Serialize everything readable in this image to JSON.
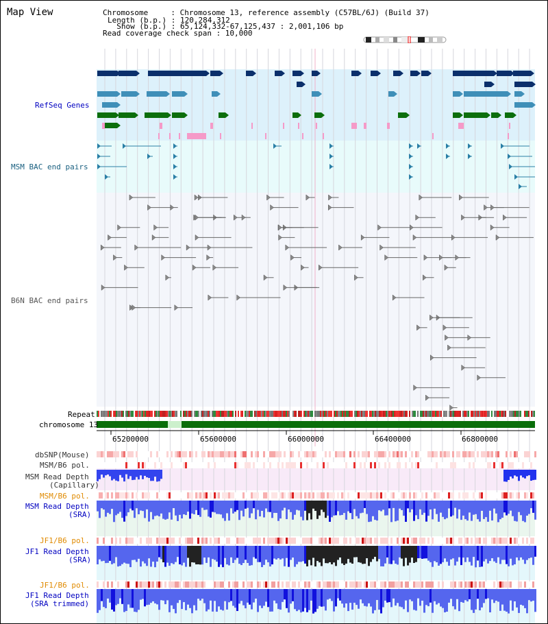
{
  "title": "Map View",
  "info": {
    "chromosome": "Chromosome     : Chromosome 13, reference assembly (C57BL/6J) (Build 37)",
    "length": "Length (b.p.) : 120,284,312",
    "show": "  Show (b.p.) : 65,124,332-67,125,437 : 2,001,106 bp",
    "coverage": "Read coverage check span : 10,000"
  },
  "tracks": {
    "refseq": "RefSeq Genes",
    "msm_bac": "MSM BAC end pairs",
    "b6n_bac": "B6N BAC end pairs",
    "repeat": "Repeat",
    "chromosome": "chromosome 13",
    "dbsnp": "dbSNP(Mouse)",
    "msm_b6_pol": "MSM/B6 pol.",
    "msm_depth_cap_1": "MSM Read Depth",
    "msm_depth_cap_2": "(Capillary)",
    "msm_b6_pol_2": "MSM/B6 pol.",
    "msm_depth_sra_1": "MSM Read Depth",
    "msm_depth_sra_2": "(SRA)",
    "jf1_b6_pol": "JF1/B6 pol.",
    "jf1_depth_sra_1": "JF1 Read Depth",
    "jf1_depth_sra_2": "(SRA)",
    "jf1_b6_pol_2": "JF1/B6 pol.",
    "jf1_depth_trim_1": "JF1 Read Depth",
    "jf1_depth_trim_2": "(SRA trimmed)"
  },
  "axis": {
    "ticks": [
      "65200000",
      "65600000",
      "66000000",
      "66400000",
      "66800000"
    ]
  },
  "colors": {
    "refseq_bg": "#ddf1fb",
    "bac_bg": "#e8fbfb",
    "navy": "#0b2f6b",
    "teal": "#3f8fb8",
    "green": "#0c6e0c",
    "pink": "#f59ac8",
    "msm_label": "#1a6080",
    "blue_label": "#0000c0",
    "orange_label": "#e08a00",
    "depth_blue": "#2222ee"
  }
}
